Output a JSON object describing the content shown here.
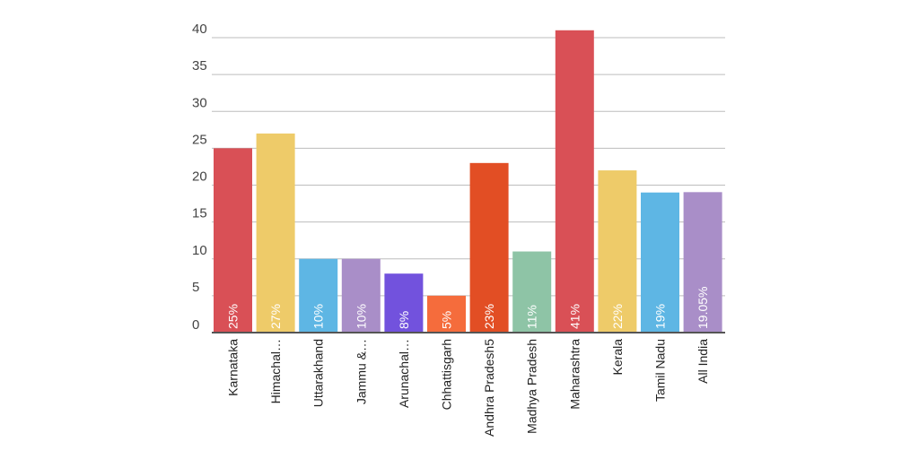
{
  "chart_data": {
    "type": "bar",
    "categories": [
      "Karnataka",
      "Himachal…",
      "Uttarakhand",
      "Jammu &…",
      "Arunachal…",
      "Chhattisgarh",
      "Andhra Pradesh5",
      "Madhya Pradesh",
      "Maharashtra",
      "Kerala",
      "Tamil Nadu",
      "All India"
    ],
    "values": [
      25,
      27,
      10,
      10,
      8,
      5,
      23,
      11,
      41,
      22,
      19,
      19.05
    ],
    "data_labels": [
      "25%",
      "27%",
      "10%",
      "10%",
      "8%",
      "5%",
      "23%",
      "11%",
      "41%",
      "22%",
      "19%",
      "19.05%"
    ],
    "colors": [
      "#d95056",
      "#eecb69",
      "#5eb6e4",
      "#a98ec8",
      "#7252dd",
      "#f56c3c",
      "#e24e24",
      "#8ec4a6",
      "#d95056",
      "#eecb69",
      "#5eb6e4",
      "#a98ec8"
    ],
    "ylim": [
      0,
      40
    ],
    "yticks": [
      0,
      5,
      10,
      15,
      20,
      25,
      30,
      35,
      40
    ],
    "grid": true,
    "title": "",
    "xlabel": "",
    "ylabel": ""
  }
}
